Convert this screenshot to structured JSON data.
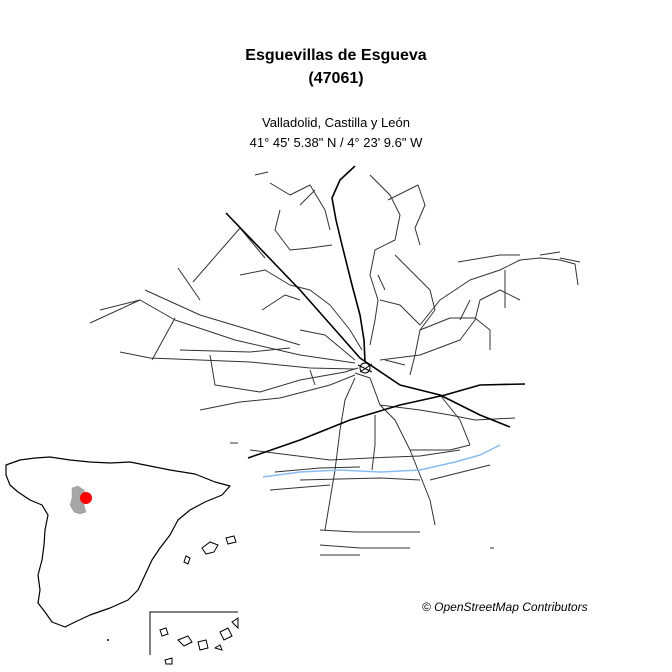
{
  "title": {
    "name": "Esguevillas de Esgueva",
    "code": "(47061)"
  },
  "subtitle": {
    "region": "Valladolid, Castilla y León",
    "coordinates": "41° 45' 5.38\" N / 4° 23' 9.6\" W"
  },
  "attribution": "© OpenStreetMap Contributors",
  "colors": {
    "road": "#333333",
    "main_road": "#000000",
    "river": "#8bbcf0",
    "province_fill": "#a6a6a6",
    "location_marker": "#ff0000"
  }
}
